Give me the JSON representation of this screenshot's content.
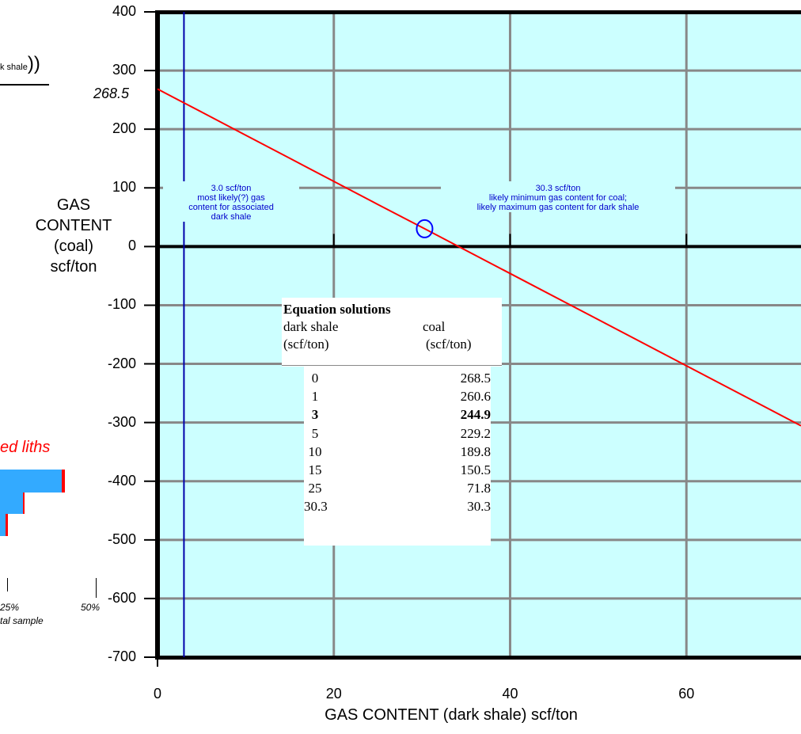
{
  "chart_data": {
    "type": "line",
    "title": "",
    "xlabel": "GAS CONTENT (dark shale) scf/ton",
    "ylabel": [
      "GAS",
      "CONTENT",
      "(coal)",
      "scf/ton"
    ],
    "xlim": [
      0,
      73
    ],
    "ylim": [
      -700,
      400
    ],
    "x_ticks": [
      0,
      20,
      40,
      60
    ],
    "y_ticks": [
      400,
      300,
      200,
      100,
      0,
      -100,
      -200,
      -300,
      -400,
      -500,
      -600,
      -700
    ],
    "grid": true,
    "series": [
      {
        "color": "#ff0000",
        "x": [
          0,
          1,
          3,
          5,
          10,
          15,
          25,
          30.3,
          73
        ],
        "y": [
          268.5,
          260.6,
          244.9,
          229.2,
          189.8,
          150.5,
          71.8,
          30.3,
          -305.5
        ]
      }
    ],
    "vertical_marker": {
      "x": 3,
      "color": "#0000aa"
    },
    "intercept_label": "268.5",
    "circle_marker": {
      "x": 30.3,
      "y": 30.3,
      "color": "#0000ff"
    },
    "annotations": [
      {
        "lines": [
          "3.0 scf/ton",
          "most likely(?) gas",
          "content for associated",
          "dark shale"
        ]
      },
      {
        "lines": [
          "30.3 scf/ton",
          "likely minimum gas content for coal;",
          "likely maximum gas content for dark shale"
        ]
      }
    ]
  },
  "table": {
    "title": "Equation solutions",
    "col1_header": [
      "dark shale",
      "(scf/ton)"
    ],
    "col2_header": [
      "coal",
      "(scf/ton)"
    ],
    "rows": [
      {
        "shale": "0",
        "coal": "268.5",
        "bold": false
      },
      {
        "shale": "1",
        "coal": "260.6",
        "bold": false
      },
      {
        "shale": "3",
        "coal": "244.9",
        "bold": true
      },
      {
        "shale": "5",
        "coal": "229.2",
        "bold": false
      },
      {
        "shale": "10",
        "coal": "189.8",
        "bold": false
      },
      {
        "shale": "15",
        "coal": "150.5",
        "bold": false
      },
      {
        "shale": "25",
        "coal": "71.8",
        "bold": false
      },
      {
        "shale": "30.3",
        "coal": "30.3",
        "bold": false
      }
    ]
  },
  "left_fragments": {
    "formula_part": "k shale",
    "formula_paren": "))",
    "liths_text": "ed liths",
    "pct_25": "25%",
    "pct_50": "50%",
    "sample_text": "tal sample",
    "bar_color": "#33aaff",
    "bar_edge_color": "#ff0000"
  }
}
